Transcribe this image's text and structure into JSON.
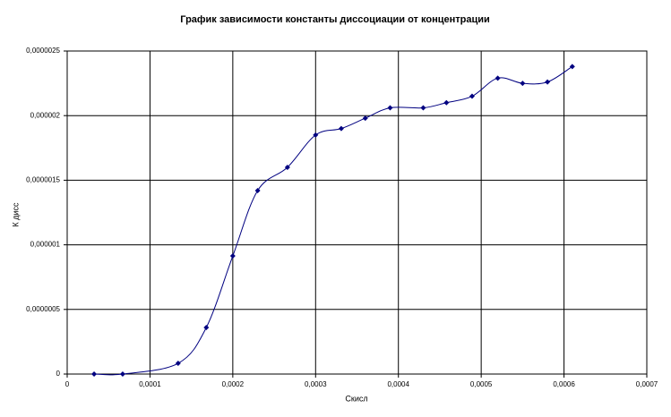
{
  "chart_data": {
    "type": "scatter",
    "title": "График зависимости константы диссоциации от концентрации",
    "xlabel": "Скисл",
    "ylabel": "К дисс",
    "series": [
      {
        "color": "#000080",
        "x": [
          3.25e-05,
          6.7e-05,
          0.000134,
          0.000168,
          0.0002,
          0.00023,
          0.000266,
          0.0003,
          0.000331,
          0.00036,
          0.00039,
          0.00043,
          0.000458,
          0.000489,
          0.00052,
          0.00055,
          0.00058,
          0.00061
        ],
        "values": [
          0,
          0,
          8.3e-08,
          3.6e-07,
          9.14e-07,
          1.42e-06,
          1.6e-06,
          1.85e-06,
          1.9e-06,
          1.98e-06,
          2.06e-06,
          2.06e-06,
          2.1e-06,
          2.15e-06,
          2.29e-06,
          2.25e-06,
          2.26e-06,
          2.38e-06
        ]
      }
    ],
    "smooth": true,
    "xlim": [
      0,
      0.0007
    ],
    "xticks": [
      0,
      {
        "value": 0.0001,
        "label": "0,0001"
      },
      {
        "value": 0.0002,
        "label": "0,0002"
      },
      {
        "value": 0.0003,
        "label": "0,0003"
      },
      {
        "value": 0.0004,
        "label": "0,0004"
      },
      {
        "value": 0.0005,
        "label": "0,0005"
      },
      {
        "value": 0.0006,
        "label": "0,0006"
      },
      {
        "value": 0.0007,
        "label": "0,0007"
      }
    ],
    "ylim": [
      0,
      2.5e-06
    ],
    "yticks": [
      0,
      {
        "value": 5e-07,
        "label": "0,0000005"
      },
      {
        "value": 1e-06,
        "label": "0,000001"
      },
      {
        "value": 1.5e-06,
        "label": "0,0000015"
      },
      {
        "value": 2e-06,
        "label": "0,000002"
      },
      {
        "value": 2.5e-06,
        "label": "0,0000025"
      }
    ],
    "grid": true
  }
}
